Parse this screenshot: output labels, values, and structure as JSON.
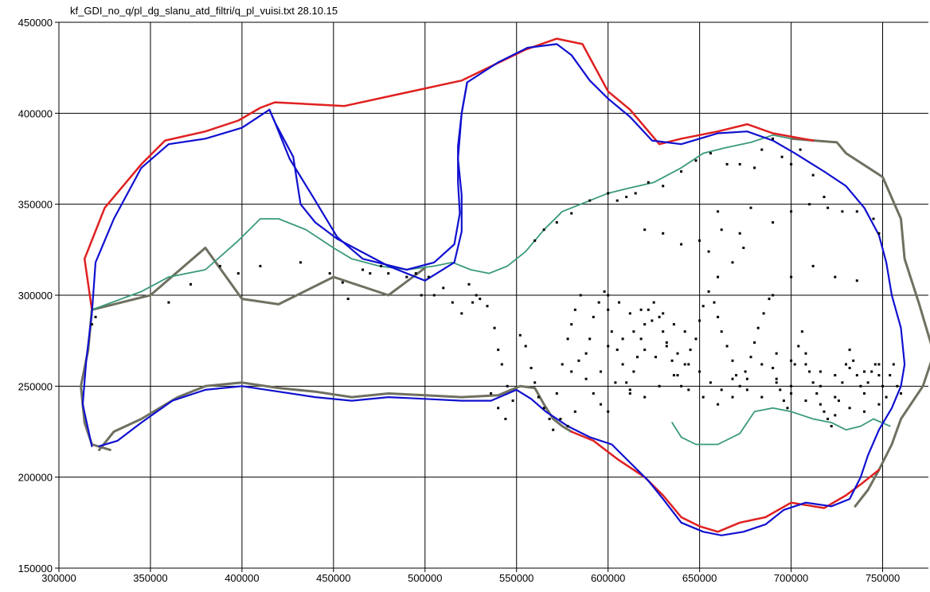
{
  "title": "kf_GDI_no_q/pl_dg_slanu_atd_filtri/q_pl_vuisi.txt  28.10.15",
  "x_axis": {
    "ticks": [
      "300000",
      "350000",
      "400000",
      "450000",
      "500000",
      "550000",
      "600000",
      "650000",
      "700000",
      "750000"
    ],
    "values": [
      300000,
      350000,
      400000,
      450000,
      500000,
      550000,
      600000,
      650000,
      700000,
      750000
    ],
    "range": [
      300000,
      775000
    ]
  },
  "y_axis": {
    "ticks": [
      "450000",
      "400000",
      "350000",
      "300000",
      "250000",
      "200000",
      "150000"
    ],
    "values": [
      450000,
      400000,
      350000,
      300000,
      250000,
      200000,
      150000
    ],
    "range": [
      150000,
      450000
    ]
  },
  "grid": true,
  "colors": {
    "outer_red": "#e02020",
    "outer_olive": "#6f7060",
    "boundary_blue": "#1010d0",
    "contour_green": "#3a9a7a",
    "points": "#000000",
    "grid": "#000000"
  },
  "layers": {
    "red_outline": [
      [
        318,
        292
      ],
      [
        314,
        320
      ],
      [
        325,
        348
      ],
      [
        345,
        372
      ],
      [
        358,
        385
      ],
      [
        380,
        390
      ],
      [
        398,
        396
      ],
      [
        410,
        403
      ],
      [
        418,
        406
      ],
      [
        456,
        404
      ],
      [
        520,
        418
      ],
      [
        555,
        435
      ],
      [
        572,
        441
      ],
      [
        586,
        438
      ],
      [
        600,
        412
      ],
      [
        612,
        402
      ],
      [
        628,
        383
      ],
      [
        640,
        386
      ],
      [
        660,
        390
      ],
      [
        676,
        394
      ],
      [
        690,
        389
      ],
      [
        712,
        385
      ]
    ],
    "olive_outline": [
      [
        700,
        386
      ],
      [
        725,
        384
      ],
      [
        730,
        378
      ],
      [
        750,
        365
      ],
      [
        760,
        342
      ],
      [
        762,
        320
      ],
      [
        770,
        295
      ],
      [
        778,
        268
      ],
      [
        772,
        250
      ],
      [
        760,
        232
      ],
      [
        755,
        218
      ],
      [
        748,
        204
      ],
      [
        742,
        193
      ],
      [
        735,
        184
      ]
    ],
    "olive_lower": [
      [
        328,
        215
      ],
      [
        318,
        218
      ],
      [
        314,
        230
      ],
      [
        312,
        250
      ],
      [
        316,
        270
      ],
      [
        318,
        292
      ],
      [
        350,
        300
      ],
      [
        380,
        326
      ],
      [
        400,
        298
      ],
      [
        420,
        295
      ],
      [
        450,
        310
      ],
      [
        480,
        300
      ],
      [
        500,
        315
      ]
    ],
    "olive_south": [
      [
        322,
        215
      ],
      [
        330,
        225
      ],
      [
        345,
        232
      ],
      [
        365,
        244
      ],
      [
        380,
        250
      ],
      [
        400,
        252
      ],
      [
        420,
        249
      ],
      [
        440,
        247
      ],
      [
        460,
        244
      ],
      [
        480,
        246
      ],
      [
        500,
        245
      ],
      [
        520,
        244
      ],
      [
        540,
        245
      ],
      [
        552,
        250
      ],
      [
        560,
        249
      ],
      [
        565,
        240
      ],
      [
        570,
        232
      ],
      [
        575,
        228
      ],
      [
        580,
        225
      ]
    ],
    "red_south": [
      [
        580,
        225
      ],
      [
        592,
        220
      ],
      [
        605,
        210
      ],
      [
        620,
        200
      ],
      [
        630,
        190
      ],
      [
        640,
        178
      ],
      [
        650,
        173
      ],
      [
        660,
        170
      ],
      [
        672,
        175
      ],
      [
        686,
        178
      ],
      [
        700,
        186
      ],
      [
        718,
        183
      ],
      [
        730,
        190
      ],
      [
        738,
        196
      ],
      [
        748,
        204
      ]
    ],
    "blue_outline": [
      [
        318,
        217
      ],
      [
        313,
        240
      ],
      [
        315,
        265
      ],
      [
        318,
        290
      ],
      [
        320,
        318
      ],
      [
        330,
        342
      ],
      [
        345,
        370
      ],
      [
        360,
        383
      ],
      [
        380,
        386
      ],
      [
        400,
        392
      ],
      [
        415,
        402
      ],
      [
        418,
        395
      ],
      [
        428,
        376
      ],
      [
        430,
        363
      ],
      [
        432,
        350
      ],
      [
        440,
        340
      ],
      [
        452,
        331
      ],
      [
        480,
        316
      ],
      [
        500,
        308
      ],
      [
        516,
        318
      ],
      [
        520,
        335
      ],
      [
        520,
        355
      ],
      [
        518,
        375
      ],
      [
        520,
        400
      ],
      [
        523,
        417
      ],
      [
        540,
        428
      ],
      [
        556,
        436
      ],
      [
        572,
        438
      ],
      [
        580,
        432
      ],
      [
        590,
        418
      ],
      [
        600,
        408
      ],
      [
        612,
        398
      ],
      [
        624,
        385
      ],
      [
        640,
        383
      ],
      [
        660,
        389
      ],
      [
        676,
        390
      ],
      [
        690,
        385
      ],
      [
        702,
        378
      ],
      [
        718,
        368
      ],
      [
        730,
        360
      ],
      [
        740,
        348
      ],
      [
        748,
        333
      ],
      [
        752,
        318
      ],
      [
        755,
        300
      ],
      [
        760,
        282
      ],
      [
        762,
        262
      ],
      [
        760,
        250
      ],
      [
        755,
        238
      ],
      [
        748,
        226
      ],
      [
        742,
        212
      ],
      [
        738,
        200
      ],
      [
        732,
        188
      ],
      [
        722,
        184
      ],
      [
        708,
        186
      ],
      [
        696,
        182
      ],
      [
        686,
        174
      ],
      [
        674,
        170
      ],
      [
        662,
        168
      ],
      [
        652,
        170
      ],
      [
        640,
        175
      ],
      [
        630,
        188
      ],
      [
        622,
        198
      ],
      [
        612,
        208
      ],
      [
        602,
        218
      ],
      [
        590,
        222
      ],
      [
        578,
        228
      ],
      [
        566,
        236
      ],
      [
        558,
        243
      ],
      [
        550,
        248
      ],
      [
        536,
        242
      ],
      [
        520,
        242
      ],
      [
        500,
        243
      ],
      [
        480,
        244
      ],
      [
        460,
        242
      ],
      [
        440,
        244
      ],
      [
        420,
        247
      ],
      [
        400,
        250
      ],
      [
        380,
        248
      ],
      [
        362,
        242
      ],
      [
        345,
        230
      ],
      [
        332,
        220
      ],
      [
        322,
        217
      ]
    ],
    "blue_north_lobe": [
      [
        415,
        402
      ],
      [
        418,
        395
      ],
      [
        426,
        375
      ],
      [
        440,
        352
      ],
      [
        452,
        332
      ],
      [
        466,
        320
      ],
      [
        490,
        314
      ],
      [
        505,
        318
      ],
      [
        516,
        328
      ],
      [
        519,
        345
      ],
      [
        518,
        362
      ],
      [
        518,
        382
      ],
      [
        520,
        400
      ],
      [
        523,
        417
      ]
    ],
    "green_contour": [
      [
        318,
        292
      ],
      [
        345,
        302
      ],
      [
        360,
        310
      ],
      [
        380,
        314
      ],
      [
        398,
        330
      ],
      [
        410,
        342
      ],
      [
        420,
        342
      ],
      [
        435,
        336
      ],
      [
        450,
        326
      ],
      [
        460,
        320
      ],
      [
        475,
        316
      ],
      [
        490,
        314
      ],
      [
        505,
        316
      ],
      [
        515,
        318
      ],
      [
        525,
        314
      ],
      [
        535,
        312
      ],
      [
        545,
        316
      ],
      [
        555,
        324
      ],
      [
        565,
        336
      ],
      [
        575,
        346
      ],
      [
        590,
        352
      ],
      [
        600,
        356
      ],
      [
        612,
        359
      ],
      [
        625,
        362
      ],
      [
        640,
        370
      ],
      [
        652,
        378
      ],
      [
        664,
        381
      ],
      [
        678,
        384
      ],
      [
        690,
        388
      ],
      [
        700,
        386
      ]
    ],
    "green_south": [
      [
        635,
        230
      ],
      [
        640,
        222
      ],
      [
        648,
        218
      ],
      [
        660,
        218
      ],
      [
        672,
        224
      ],
      [
        680,
        236
      ],
      [
        690,
        238
      ],
      [
        700,
        236
      ],
      [
        712,
        232
      ],
      [
        722,
        230
      ],
      [
        730,
        226
      ],
      [
        738,
        228
      ],
      [
        745,
        232
      ],
      [
        754,
        228
      ]
    ]
  },
  "points": [
    [
      318,
      284
    ],
    [
      320,
      288
    ],
    [
      360,
      296
    ],
    [
      372,
      306
    ],
    [
      388,
      316
    ],
    [
      398,
      312
    ],
    [
      410,
      316
    ],
    [
      432,
      318
    ],
    [
      448,
      312
    ],
    [
      455,
      307
    ],
    [
      458,
      298
    ],
    [
      466,
      314
    ],
    [
      470,
      312
    ],
    [
      476,
      316
    ],
    [
      480,
      312
    ],
    [
      490,
      310
    ],
    [
      495,
      312
    ],
    [
      498,
      300
    ],
    [
      502,
      310
    ],
    [
      505,
      300
    ],
    [
      510,
      304
    ],
    [
      515,
      296
    ],
    [
      520,
      290
    ],
    [
      524,
      306
    ],
    [
      526,
      296
    ],
    [
      528,
      300
    ],
    [
      530,
      298
    ],
    [
      534,
      294
    ],
    [
      538,
      282
    ],
    [
      540,
      270
    ],
    [
      542,
      262
    ],
    [
      545,
      250
    ],
    [
      548,
      242
    ],
    [
      552,
      278
    ],
    [
      555,
      272
    ],
    [
      558,
      260
    ],
    [
      560,
      252
    ],
    [
      562,
      244
    ],
    [
      565,
      238
    ],
    [
      568,
      232
    ],
    [
      570,
      226
    ],
    [
      572,
      246
    ],
    [
      575,
      262
    ],
    [
      578,
      276
    ],
    [
      580,
      284
    ],
    [
      582,
      292
    ],
    [
      585,
      300
    ],
    [
      588,
      268
    ],
    [
      590,
      276
    ],
    [
      592,
      288
    ],
    [
      595,
      296
    ],
    [
      598,
      302
    ],
    [
      600,
      292
    ],
    [
      602,
      280
    ],
    [
      605,
      270
    ],
    [
      608,
      262
    ],
    [
      610,
      252
    ],
    [
      612,
      246
    ],
    [
      614,
      258
    ],
    [
      616,
      266
    ],
    [
      618,
      276
    ],
    [
      620,
      284
    ],
    [
      622,
      292
    ],
    [
      625,
      296
    ],
    [
      628,
      288
    ],
    [
      630,
      280
    ],
    [
      632,
      272
    ],
    [
      635,
      264
    ],
    [
      638,
      256
    ],
    [
      640,
      250
    ],
    [
      642,
      262
    ],
    [
      645,
      270
    ],
    [
      648,
      276
    ],
    [
      650,
      286
    ],
    [
      652,
      294
    ],
    [
      655,
      302
    ],
    [
      658,
      296
    ],
    [
      660,
      288
    ],
    [
      662,
      280
    ],
    [
      665,
      272
    ],
    [
      668,
      264
    ],
    [
      670,
      256
    ],
    [
      672,
      250
    ],
    [
      675,
      258
    ],
    [
      678,
      266
    ],
    [
      680,
      274
    ],
    [
      682,
      282
    ],
    [
      685,
      290
    ],
    [
      688,
      298
    ],
    [
      690,
      260
    ],
    [
      692,
      254
    ],
    [
      694,
      248
    ],
    [
      696,
      242
    ],
    [
      698,
      238
    ],
    [
      700,
      250
    ],
    [
      702,
      262
    ],
    [
      704,
      272
    ],
    [
      706,
      280
    ],
    [
      708,
      268
    ],
    [
      710,
      258
    ],
    [
      712,
      252
    ],
    [
      714,
      246
    ],
    [
      716,
      240
    ],
    [
      718,
      236
    ],
    [
      720,
      232
    ],
    [
      722,
      228
    ],
    [
      724,
      234
    ],
    [
      726,
      242
    ],
    [
      728,
      252
    ],
    [
      730,
      262
    ],
    [
      732,
      270
    ],
    [
      734,
      264
    ],
    [
      736,
      256
    ],
    [
      738,
      250
    ],
    [
      740,
      246
    ],
    [
      742,
      252
    ],
    [
      744,
      258
    ],
    [
      746,
      262
    ],
    [
      748,
      256
    ],
    [
      750,
      250
    ],
    [
      752,
      244
    ],
    [
      754,
      256
    ],
    [
      756,
      262
    ],
    [
      758,
      250
    ],
    [
      760,
      246
    ],
    [
      560,
      330
    ],
    [
      565,
      336
    ],
    [
      572,
      340
    ],
    [
      580,
      345
    ],
    [
      590,
      352
    ],
    [
      600,
      356
    ],
    [
      605,
      352
    ],
    [
      610,
      354
    ],
    [
      615,
      356
    ],
    [
      622,
      362
    ],
    [
      630,
      360
    ],
    [
      640,
      368
    ],
    [
      648,
      374
    ],
    [
      656,
      378
    ],
    [
      665,
      372
    ],
    [
      672,
      372
    ],
    [
      680,
      370
    ],
    [
      684,
      380
    ],
    [
      690,
      386
    ],
    [
      695,
      376
    ],
    [
      700,
      372
    ],
    [
      705,
      380
    ],
    [
      712,
      366
    ],
    [
      718,
      354
    ],
    [
      728,
      346
    ],
    [
      736,
      346
    ],
    [
      745,
      342
    ],
    [
      748,
      334
    ],
    [
      620,
      336
    ],
    [
      630,
      334
    ],
    [
      640,
      328
    ],
    [
      650,
      330
    ],
    [
      655,
      324
    ],
    [
      660,
      346
    ],
    [
      662,
      336
    ],
    [
      672,
      334
    ],
    [
      678,
      348
    ],
    [
      690,
      340
    ],
    [
      700,
      346
    ],
    [
      710,
      350
    ],
    [
      720,
      348
    ],
    [
      660,
      310
    ],
    [
      668,
      318
    ],
    [
      674,
      326
    ],
    [
      690,
      300
    ],
    [
      700,
      310
    ],
    [
      712,
      316
    ],
    [
      724,
      310
    ],
    [
      736,
      308
    ],
    [
      600,
      300
    ],
    [
      606,
      296
    ],
    [
      612,
      290
    ],
    [
      618,
      292
    ],
    [
      624,
      286
    ],
    [
      630,
      290
    ],
    [
      636,
      284
    ],
    [
      642,
      280
    ],
    [
      600,
      272
    ],
    [
      608,
      276
    ],
    [
      614,
      280
    ],
    [
      620,
      270
    ],
    [
      626,
      266
    ],
    [
      632,
      274
    ],
    [
      638,
      268
    ],
    [
      644,
      262
    ],
    [
      650,
      258
    ],
    [
      656,
      252
    ],
    [
      662,
      248
    ],
    [
      668,
      244
    ],
    [
      676,
      254
    ],
    [
      684,
      262
    ],
    [
      692,
      268
    ],
    [
      700,
      264
    ],
    [
      708,
      262
    ],
    [
      716,
      258
    ],
    [
      724,
      256
    ],
    [
      732,
      260
    ],
    [
      740,
      258
    ],
    [
      748,
      262
    ],
    [
      596,
      258
    ],
    [
      604,
      252
    ],
    [
      612,
      248
    ],
    [
      620,
      244
    ],
    [
      628,
      250
    ],
    [
      636,
      256
    ],
    [
      644,
      248
    ],
    [
      652,
      244
    ],
    [
      660,
      240
    ],
    [
      668,
      254
    ],
    [
      676,
      248
    ],
    [
      684,
      244
    ],
    [
      692,
      252
    ],
    [
      700,
      246
    ],
    [
      708,
      242
    ],
    [
      716,
      250
    ],
    [
      724,
      244
    ],
    [
      732,
      238
    ],
    [
      740,
      236
    ],
    [
      748,
      240
    ],
    [
      580,
      258
    ],
    [
      584,
      264
    ],
    [
      588,
      254
    ],
    [
      592,
      246
    ],
    [
      596,
      240
    ],
    [
      600,
      236
    ],
    [
      544,
      232
    ],
    [
      540,
      238
    ],
    [
      536,
      246
    ],
    [
      574,
      232
    ],
    [
      578,
      228
    ],
    [
      582,
      236
    ]
  ]
}
